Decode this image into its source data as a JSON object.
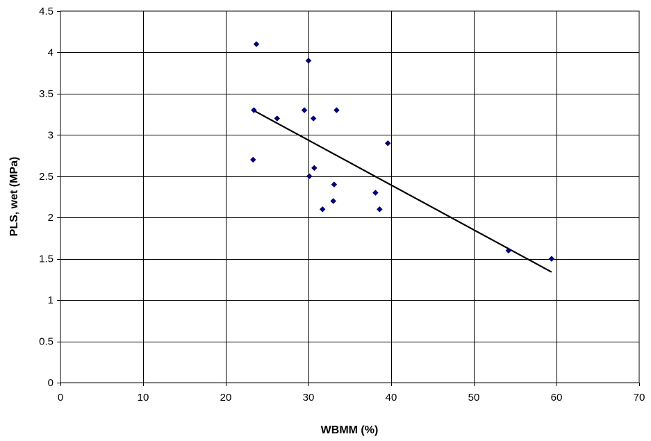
{
  "chart_data": {
    "type": "scatter",
    "title": "",
    "xlabel": "WBMM (%)",
    "ylabel": "PLS, wet (MPa)",
    "xlim": [
      0,
      70
    ],
    "ylim": [
      0,
      4.5
    ],
    "x_ticks": [
      0,
      10,
      20,
      30,
      40,
      50,
      60,
      70
    ],
    "y_ticks": [
      0,
      0.5,
      1,
      1.5,
      2,
      2.5,
      3,
      3.5,
      4,
      4.5
    ],
    "x_tick_labels": [
      "0",
      "10",
      "20",
      "30",
      "40",
      "50",
      "60",
      "70"
    ],
    "y_tick_labels": [
      "0",
      "0.5",
      "1",
      "1.5",
      "2",
      "2.5",
      "3",
      "3.5",
      "4",
      "4.5"
    ],
    "grid": true,
    "legend": "none",
    "series": [
      {
        "marker": "diamond",
        "color": "#000080",
        "points": [
          {
            "x": 23.7,
            "y": 4.1
          },
          {
            "x": 30.0,
            "y": 3.9
          },
          {
            "x": 23.4,
            "y": 3.3
          },
          {
            "x": 29.5,
            "y": 3.3
          },
          {
            "x": 33.4,
            "y": 3.3
          },
          {
            "x": 26.2,
            "y": 3.2
          },
          {
            "x": 30.6,
            "y": 3.2
          },
          {
            "x": 39.6,
            "y": 2.9
          },
          {
            "x": 23.3,
            "y": 2.7
          },
          {
            "x": 30.7,
            "y": 2.6
          },
          {
            "x": 30.1,
            "y": 2.5
          },
          {
            "x": 33.1,
            "y": 2.4
          },
          {
            "x": 38.1,
            "y": 2.3
          },
          {
            "x": 33.0,
            "y": 2.2
          },
          {
            "x": 31.7,
            "y": 2.1
          },
          {
            "x": 38.6,
            "y": 2.1
          },
          {
            "x": 54.2,
            "y": 1.6
          },
          {
            "x": 59.4,
            "y": 1.5
          }
        ]
      }
    ],
    "trendline": {
      "type": "linear",
      "color": "#000000",
      "x": [
        23.3,
        59.4
      ],
      "y": [
        3.3,
        1.34
      ]
    }
  }
}
